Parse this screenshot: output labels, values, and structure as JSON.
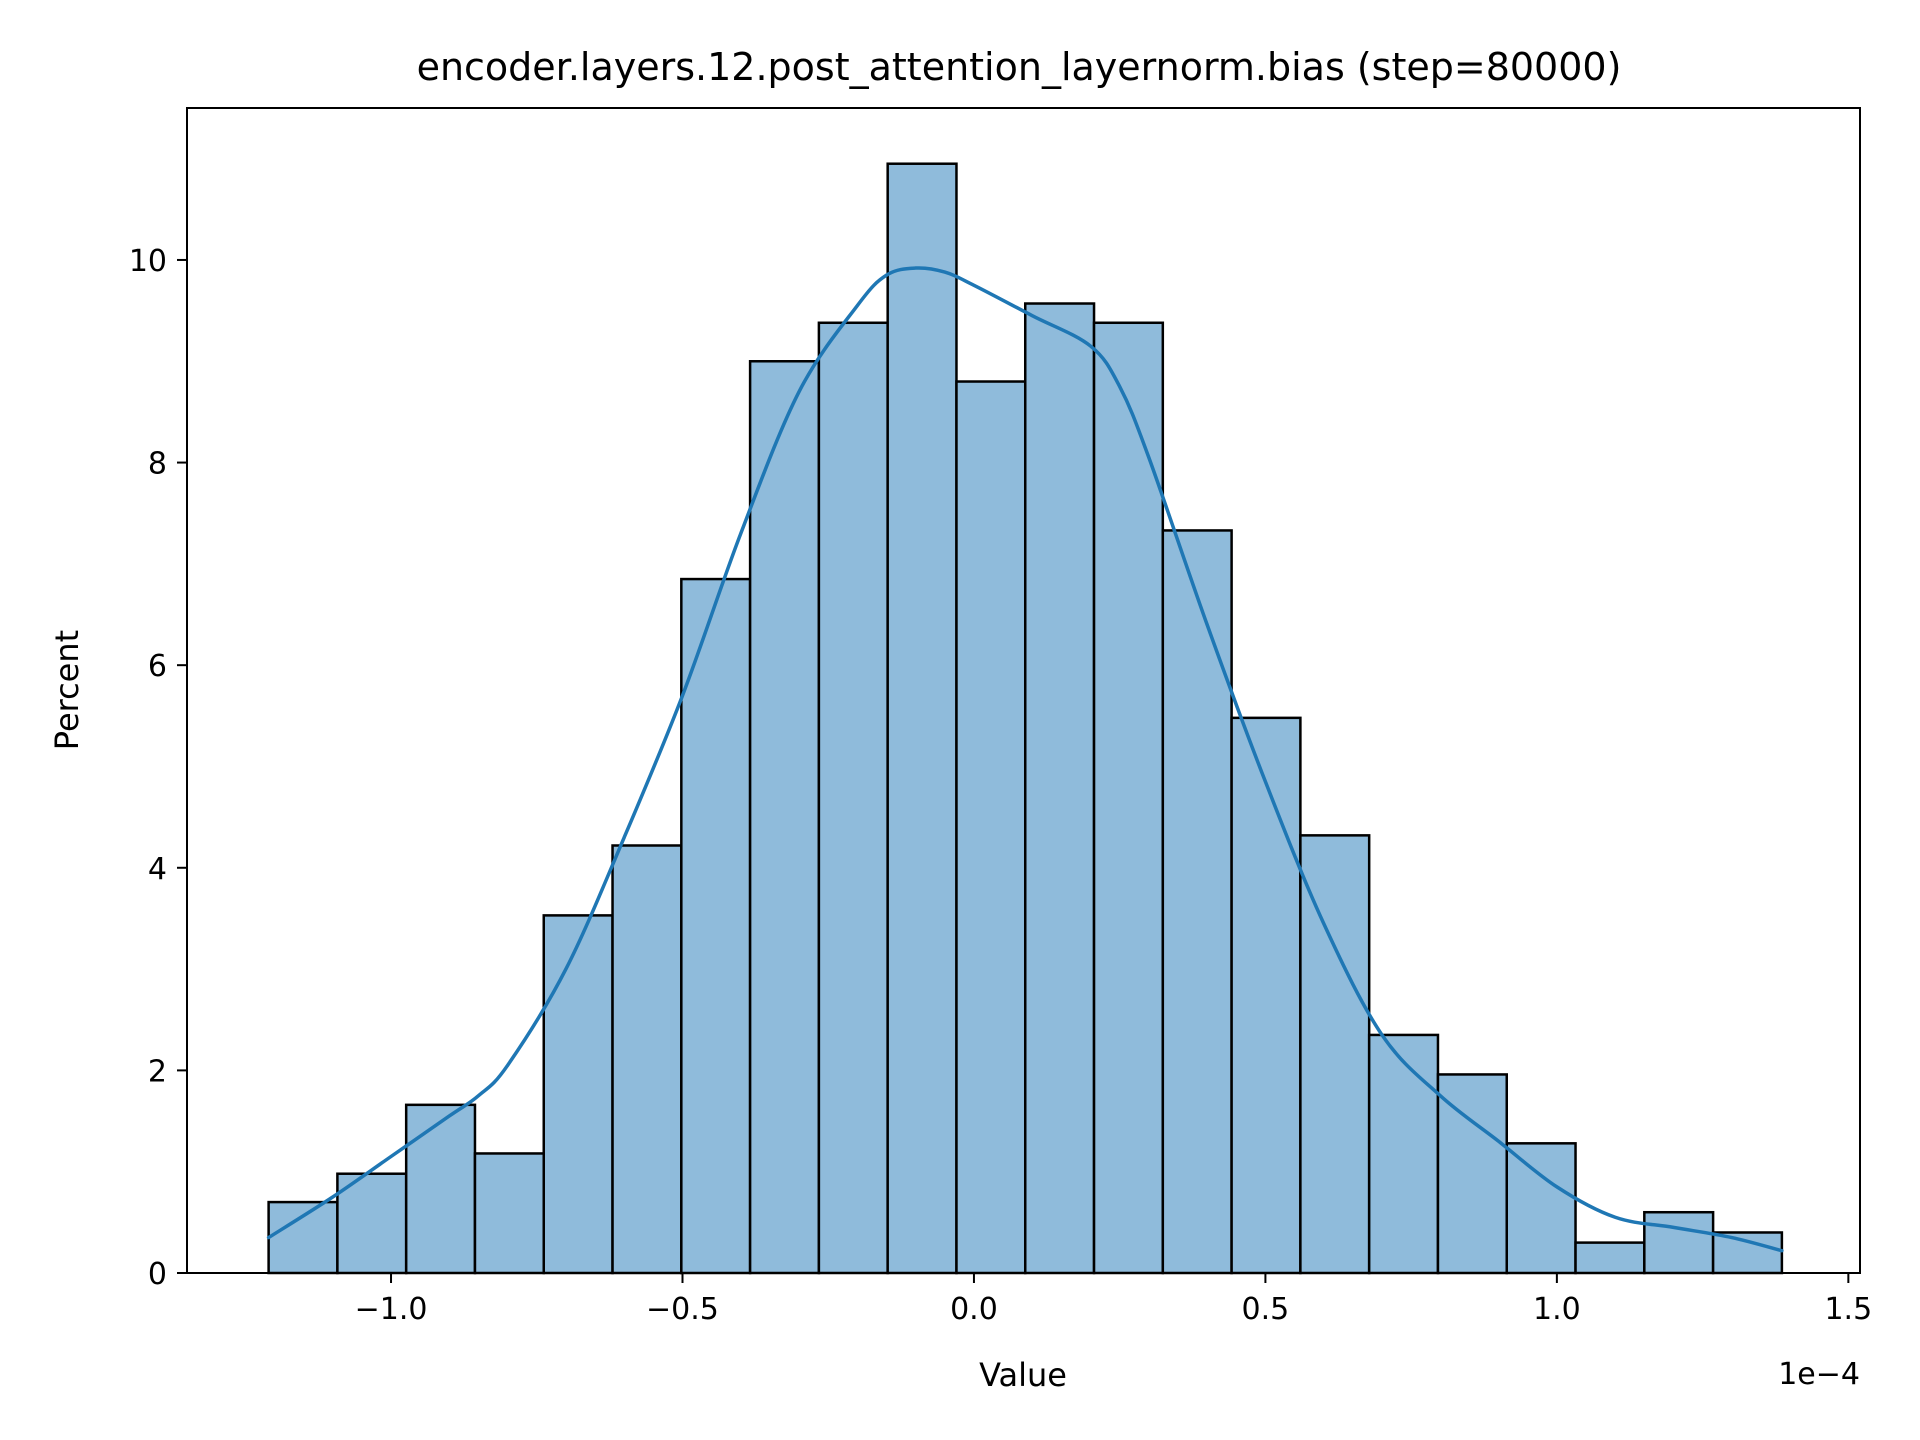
{
  "chart_data": {
    "type": "bar",
    "title": "encoder.layers.12.post_attention_layernorm.bias (step=80000)",
    "xlabel": "Value",
    "ylabel": "Percent",
    "x_offset_label": "1e−4",
    "x_scale_exponent": -4,
    "xlim": [
      -1.35,
      1.52
    ],
    "ylim": [
      0,
      11.5
    ],
    "grid": false,
    "x_ticks": [
      {
        "value": -1.0,
        "label": "−1.0"
      },
      {
        "value": -0.5,
        "label": "−0.5"
      },
      {
        "value": 0.0,
        "label": "0.0"
      },
      {
        "value": 0.5,
        "label": "0.5"
      },
      {
        "value": 1.0,
        "label": "1.0"
      },
      {
        "value": 1.5,
        "label": "1.5"
      }
    ],
    "y_ticks": [
      {
        "value": 0,
        "label": "0"
      },
      {
        "value": 2,
        "label": "2"
      },
      {
        "value": 4,
        "label": "4"
      },
      {
        "value": 6,
        "label": "6"
      },
      {
        "value": 8,
        "label": "8"
      },
      {
        "value": 10,
        "label": "10"
      }
    ],
    "bin_edges": [
      -1.21,
      -1.092,
      -0.974,
      -0.856,
      -0.738,
      -0.62,
      -0.502,
      -0.384,
      -0.266,
      -0.148,
      -0.03,
      0.088,
      0.206,
      0.324,
      0.442,
      0.56,
      0.678,
      0.796,
      0.914,
      1.032,
      1.15,
      1.268,
      1.386
    ],
    "values": [
      0.7,
      0.98,
      1.66,
      1.18,
      3.53,
      4.22,
      6.85,
      9.0,
      9.38,
      10.95,
      8.8,
      9.57,
      9.38,
      7.33,
      5.48,
      4.32,
      2.35,
      1.96,
      1.28,
      0.3,
      0.6,
      0.4
    ],
    "kde": {
      "x": [
        -1.21,
        -1.1,
        -1.0,
        -0.9,
        -0.85,
        -0.8,
        -0.7,
        -0.6,
        -0.5,
        -0.4,
        -0.3,
        -0.2,
        -0.15,
        -0.1,
        -0.05,
        0.0,
        0.1,
        0.2,
        0.25,
        0.3,
        0.4,
        0.5,
        0.6,
        0.7,
        0.8,
        0.9,
        1.0,
        1.1,
        1.2,
        1.3,
        1.386
      ],
      "y": [
        0.35,
        0.75,
        1.15,
        1.55,
        1.75,
        2.05,
        3.0,
        4.3,
        5.7,
        7.3,
        8.7,
        9.55,
        9.85,
        9.92,
        9.88,
        9.75,
        9.45,
        9.15,
        8.75,
        8.05,
        6.4,
        4.85,
        3.45,
        2.35,
        1.75,
        1.3,
        0.85,
        0.55,
        0.45,
        0.35,
        0.22
      ]
    },
    "colors": {
      "bar_fill": "#8fbbdb",
      "bar_edge": "#000000",
      "kde_line": "#1f77b4"
    }
  }
}
